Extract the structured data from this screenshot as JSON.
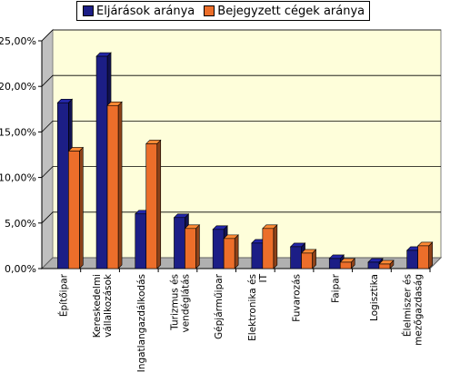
{
  "colors": {
    "series_1": "#1c1e86",
    "series_2": "#ec6e2a",
    "plot_background": "#fefeda",
    "floor": "#b0b0b0"
  },
  "chart_data": {
    "type": "bar",
    "three_d": true,
    "categories": [
      "Építőipar",
      "Kereskedelmi vállalkozások",
      "Ingatlangazdálkodás",
      "Turizmus és vendéglátás",
      "Gépjárműipar",
      "Elektronika és IT",
      "Fuvarozás",
      "Faipar",
      "Logisztika",
      "Élelmiszer és mezőgazdaság"
    ],
    "series": [
      {
        "name": "Eljárások aránya",
        "values": [
          18.2,
          23.3,
          6.0,
          5.6,
          4.3,
          2.8,
          2.4,
          1.1,
          0.7,
          2.0
        ]
      },
      {
        "name": "Bejegyzett cégek aránya",
        "values": [
          12.9,
          17.9,
          13.7,
          4.4,
          3.3,
          4.4,
          1.7,
          0.7,
          0.5,
          2.5
        ]
      }
    ],
    "ylim": [
      0,
      25
    ],
    "yticks": [
      "0,00%",
      "5,00%",
      "10,00%",
      "15,00%",
      "20,00%",
      "25,00%"
    ],
    "ytick_values": [
      0,
      5,
      10,
      15,
      20,
      25
    ],
    "grid": true,
    "legend": "top"
  }
}
